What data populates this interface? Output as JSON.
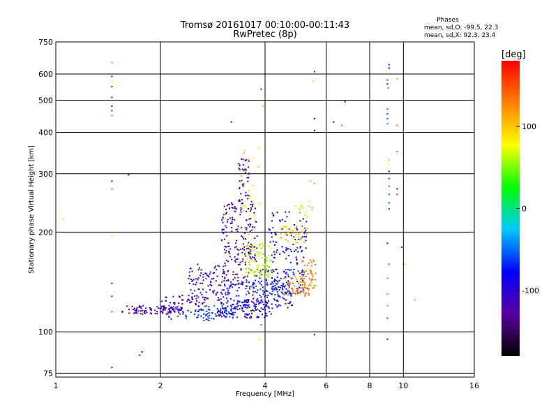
{
  "chart_data": {
    "type": "scatter",
    "title": "Tromsø 20161017 00:10:00-00:11:43",
    "subtitle": "RwPretec (8p)",
    "xlabel": "Frequency [MHz]",
    "ylabel": "Stationary phase Virtual Height [km]",
    "x_scale": "log",
    "y_scale": "log",
    "xlim": [
      1,
      16
    ],
    "ylim": [
      73,
      750
    ],
    "x_ticks": [
      1,
      2,
      4,
      6,
      8,
      10,
      16
    ],
    "y_ticks": [
      75,
      100,
      200,
      300,
      400,
      500,
      600,
      750
    ],
    "grid": true,
    "phase_stats": {
      "title": "Phases",
      "o_line": "mean, sd,O: -99.5, 22.3",
      "x_line": "mean, sd,X:  92.3, 23.4"
    },
    "colorbar": {
      "label": "[deg]",
      "range": [
        -180,
        180
      ],
      "ticks": [
        100,
        0,
        -100
      ],
      "colors": [
        "#000000",
        "#5a00a0",
        "#0000ff",
        "#00c8ff",
        "#00ff00",
        "#ffff00",
        "#ff8000",
        "#ff0000"
      ]
    },
    "series": [
      {
        "points": [
          [
            1.05,
            220,
            80
          ],
          [
            1.45,
            650,
            20
          ],
          [
            1.45,
            590,
            -95
          ],
          [
            1.45,
            570,
            90
          ],
          [
            1.45,
            550,
            -120
          ],
          [
            1.45,
            510,
            -125
          ],
          [
            1.45,
            480,
            -130
          ],
          [
            1.45,
            465,
            -130
          ],
          [
            1.45,
            450,
            140
          ],
          [
            1.45,
            285,
            -140
          ],
          [
            1.45,
            270,
            140
          ],
          [
            1.45,
            195,
            90
          ],
          [
            1.45,
            140,
            -140
          ],
          [
            1.45,
            128,
            -140
          ],
          [
            1.45,
            115,
            150
          ],
          [
            1.45,
            78,
            -140
          ],
          [
            1.62,
            298,
            -80
          ],
          [
            1.74,
            85,
            -100
          ],
          [
            1.77,
            87,
            -90
          ],
          [
            3.2,
            430,
            -130
          ],
          [
            3.9,
            540,
            -130
          ],
          [
            3.95,
            480,
            110
          ],
          [
            3.9,
            105,
            150
          ],
          [
            3.85,
            95,
            100
          ],
          [
            5.55,
            610,
            -110
          ],
          [
            5.5,
            570,
            100
          ],
          [
            5.55,
            440,
            -100
          ],
          [
            5.55,
            405,
            -100
          ],
          [
            5.4,
            285,
            110
          ],
          [
            5.55,
            280,
            130
          ],
          [
            5.55,
            98,
            -95
          ],
          [
            6.3,
            430,
            -90
          ],
          [
            6.65,
            420,
            140
          ],
          [
            6.8,
            495,
            -120
          ],
          [
            9.1,
            640,
            -60
          ],
          [
            9.1,
            625,
            -90
          ],
          [
            9.0,
            575,
            -60
          ],
          [
            9.0,
            560,
            -70
          ],
          [
            9.05,
            545,
            -40
          ],
          [
            9.0,
            470,
            -50
          ],
          [
            9.0,
            455,
            -60
          ],
          [
            9.0,
            440,
            -55
          ],
          [
            9.0,
            425,
            -40
          ],
          [
            9.1,
            330,
            50
          ],
          [
            9.1,
            320,
            80
          ],
          [
            9.1,
            305,
            -80
          ],
          [
            9.1,
            290,
            -60
          ],
          [
            9.1,
            275,
            -40
          ],
          [
            9.1,
            260,
            -50
          ],
          [
            9.1,
            245,
            -60
          ],
          [
            9.1,
            235,
            -60
          ],
          [
            9.0,
            185,
            -90
          ],
          [
            9.1,
            160,
            -40
          ],
          [
            9.0,
            145,
            -30
          ],
          [
            9.0,
            130,
            -20
          ],
          [
            9.0,
            120,
            10
          ],
          [
            9.0,
            110,
            -60
          ],
          [
            9.0,
            95,
            -100
          ],
          [
            9.6,
            580,
            110
          ],
          [
            9.6,
            420,
            150
          ],
          [
            9.6,
            350,
            150
          ],
          [
            9.6,
            270,
            -140
          ],
          [
            9.6,
            260,
            160
          ],
          [
            9.9,
            180,
            -120
          ],
          [
            10.1,
            160,
            100
          ],
          [
            10.8,
            125,
            110
          ]
        ]
      }
    ],
    "clusters": [
      {
        "x": [
          1.55,
          2.3
        ],
        "y": [
          113,
          120
        ],
        "phase": [
          -125,
          -110
        ],
        "n": 90
      },
      {
        "x": [
          2.0,
          2.7
        ],
        "y": [
          116,
          130
        ],
        "phase": [
          -120,
          -95
        ],
        "n": 60
      },
      {
        "x": [
          2.1,
          2.9
        ],
        "y": [
          108,
          117
        ],
        "phase": [
          -80,
          -50
        ],
        "n": 35
      },
      {
        "x": [
          2.5,
          3.3
        ],
        "y": [
          110,
          120
        ],
        "phase": [
          -75,
          -55
        ],
        "n": 45
      },
      {
        "x": [
          2.4,
          3.1
        ],
        "y": [
          125,
          160
        ],
        "phase": [
          -110,
          -80
        ],
        "n": 90
      },
      {
        "x": [
          3.0,
          3.8
        ],
        "y": [
          140,
          250
        ],
        "phase": [
          -130,
          -110
        ],
        "n": 210
      },
      {
        "x": [
          3.35,
          3.6
        ],
        "y": [
          250,
          335
        ],
        "phase": [
          -125,
          -110
        ],
        "n": 40
      },
      {
        "x": [
          2.9,
          4.2
        ],
        "y": [
          110,
          125
        ],
        "phase": [
          -105,
          -80
        ],
        "n": 130
      },
      {
        "x": [
          3.0,
          4.8
        ],
        "y": [
          118,
          140
        ],
        "phase": [
          -90,
          -65
        ],
        "n": 150
      },
      {
        "x": [
          3.7,
          5.2
        ],
        "y": [
          130,
          155
        ],
        "phase": [
          -85,
          -60
        ],
        "n": 110
      },
      {
        "x": [
          3.5,
          4.2
        ],
        "y": [
          145,
          185
        ],
        "phase": [
          40,
          85
        ],
        "n": 100
      },
      {
        "x": [
          3.4,
          3.9
        ],
        "y": [
          190,
          360
        ],
        "phase": [
          60,
          110
        ],
        "n": 25
      },
      {
        "x": [
          4.1,
          5.3
        ],
        "y": [
          160,
          230
        ],
        "phase": [
          -100,
          -70
        ],
        "n": 90
      },
      {
        "x": [
          4.4,
          5.3
        ],
        "y": [
          185,
          210
        ],
        "phase": [
          70,
          120
        ],
        "n": 40
      },
      {
        "x": [
          4.5,
          5.4
        ],
        "y": [
          128,
          148
        ],
        "phase": [
          100,
          160
        ],
        "n": 60
      },
      {
        "x": [
          5.1,
          5.6
        ],
        "y": [
          135,
          165
        ],
        "phase": [
          110,
          150
        ],
        "n": 50
      },
      {
        "x": [
          4.9,
          5.5
        ],
        "y": [
          220,
          250
        ],
        "phase": [
          80,
          110
        ],
        "n": 15
      }
    ]
  }
}
